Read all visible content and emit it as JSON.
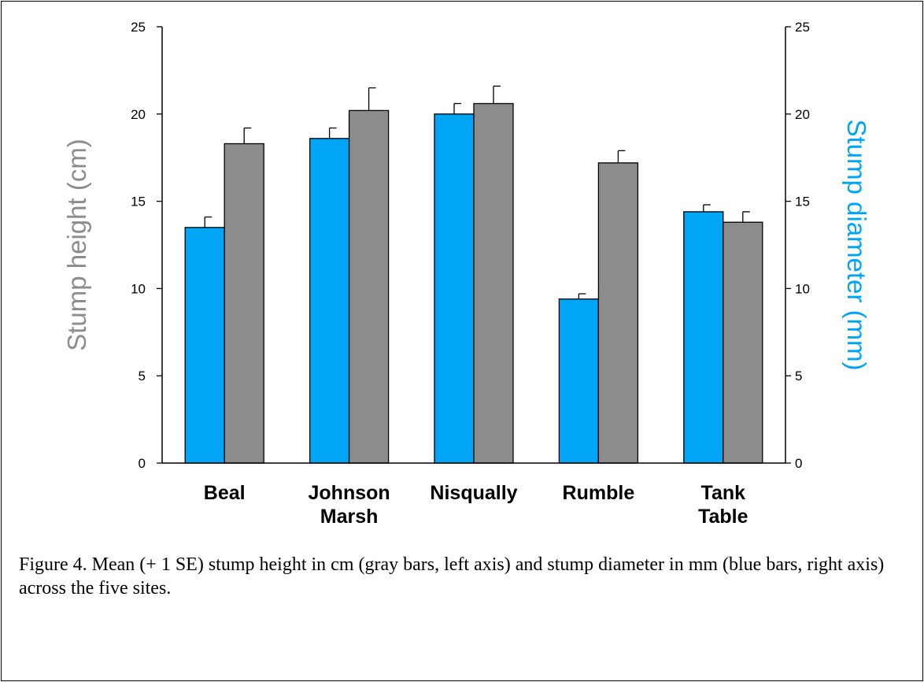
{
  "caption": "Figure 4. Mean (+ 1 SE) stump height in cm (gray bars, left axis) and stump diameter in mm (blue bars, right axis) across the five sites.",
  "colors": {
    "blue": "#00A6F5",
    "gray": "#8C8C8C",
    "axis": "#000000"
  },
  "chart_data": {
    "type": "bar",
    "categories": [
      [
        "Beal"
      ],
      [
        "Johnson",
        "Marsh"
      ],
      [
        "Nisqually"
      ],
      [
        "Rumble"
      ],
      [
        "Tank",
        "Table"
      ]
    ],
    "series": [
      {
        "color": "blue",
        "axis": "right",
        "values": [
          13.5,
          18.6,
          20.0,
          9.4,
          14.4
        ],
        "se": [
          0.6,
          0.6,
          0.6,
          0.3,
          0.4
        ]
      },
      {
        "color": "gray",
        "axis": "left",
        "values": [
          18.3,
          20.2,
          20.6,
          17.2,
          13.8
        ],
        "se": [
          0.9,
          1.3,
          1.0,
          0.7,
          0.6
        ]
      }
    ],
    "ylabel": "Stump height (cm)",
    "y2label": "Stump diameter (mm)",
    "ylim": [
      0,
      25
    ],
    "y2lim": [
      0,
      25
    ],
    "yticks": [
      0,
      5,
      10,
      15,
      20,
      25
    ],
    "y2ticks": [
      0,
      5,
      10,
      15,
      20,
      25
    ],
    "grid": false,
    "legend": "none"
  }
}
